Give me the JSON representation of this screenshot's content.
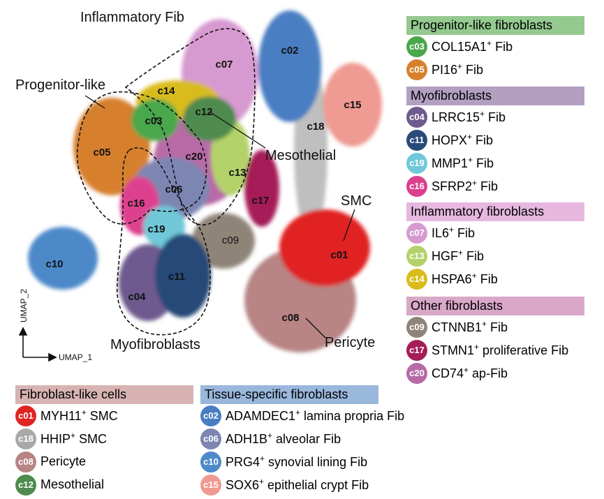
{
  "figure": {
    "axis_x_label": "UMAP_1",
    "axis_y_label": "UMAP_2",
    "annotations": {
      "inflammatory": "Inflammatory Fib",
      "progenitor": "Progenitor-like",
      "myofibroblasts": "Myofibroblasts",
      "mesothelial": "Mesothelial",
      "smc": "SMC",
      "pericyte": "Pericyte"
    }
  },
  "chart_data": {
    "type": "scatter",
    "xlabel": "UMAP_1",
    "ylabel": "UMAP_2",
    "clusters": [
      {
        "id": "c01",
        "color": "#e02424"
      },
      {
        "id": "c02",
        "color": "#4a7ec2"
      },
      {
        "id": "c03",
        "color": "#4aa84c"
      },
      {
        "id": "c04",
        "color": "#6e5a8e"
      },
      {
        "id": "c05",
        "color": "#d6802e"
      },
      {
        "id": "c06",
        "color": "#7d86b2"
      },
      {
        "id": "c07",
        "color": "#d79ad0"
      },
      {
        "id": "c08",
        "color": "#b88484"
      },
      {
        "id": "c09",
        "color": "#8f8478"
      },
      {
        "id": "c10",
        "color": "#4e89c9"
      },
      {
        "id": "c11",
        "color": "#284a78"
      },
      {
        "id": "c12",
        "color": "#4f8b4f"
      },
      {
        "id": "c13",
        "color": "#b4d26a"
      },
      {
        "id": "c14",
        "color": "#d9bc1a"
      },
      {
        "id": "c15",
        "color": "#ef9a92"
      },
      {
        "id": "c16",
        "color": "#dd3f8f"
      },
      {
        "id": "c17",
        "color": "#a51d58"
      },
      {
        "id": "c18",
        "color": "#a9a9a9"
      },
      {
        "id": "c19",
        "color": "#6fc8d9"
      },
      {
        "id": "c20",
        "color": "#b86aa6"
      }
    ]
  },
  "legend": {
    "groups": [
      {
        "title": "Progenitor-like fibroblasts",
        "color": "#94c98f",
        "items": [
          {
            "badge": "c03",
            "gene": "COL15A1",
            "sup": "+",
            "rest": " Fib",
            "color": "#4aa84c"
          },
          {
            "badge": "c05",
            "gene": "PI16",
            "sup": "+",
            "rest": " Fib",
            "color": "#d6802e"
          }
        ]
      },
      {
        "title": "Myofibroblasts",
        "color": "#b3a0c1",
        "items": [
          {
            "badge": "c04",
            "gene": "LRRC15",
            "sup": "+",
            "rest": " Fib",
            "color": "#6e5a8e"
          },
          {
            "badge": "c11",
            "gene": "HOPX",
            "sup": "+",
            "rest": " Fib",
            "color": "#284a78"
          },
          {
            "badge": "c19",
            "gene": "MMP1",
            "sup": "+",
            "rest": " Fib",
            "color": "#6fc8d9"
          },
          {
            "badge": "c16",
            "gene": "SFRP2",
            "sup": "+",
            "rest": " Fib",
            "color": "#dd3f8f"
          }
        ]
      },
      {
        "title": "Inflammatory fibroblasts",
        "color": "#e6b8e0",
        "items": [
          {
            "badge": "c07",
            "gene": "IL6",
            "sup": "+",
            "rest": " Fib",
            "color": "#d79ad0"
          },
          {
            "badge": "c13",
            "gene": "HGF",
            "sup": "+",
            "rest": " Fib",
            "color": "#b4d26a"
          },
          {
            "badge": "c14",
            "gene": "HSPA6",
            "sup": "+",
            "rest": " Fib",
            "color": "#d9bc1a"
          }
        ]
      },
      {
        "title": "Other fibroblasts",
        "color": "#d9a8c8",
        "items": [
          {
            "badge": "c09",
            "gene": "CTNNB1",
            "sup": "+",
            "rest": " Fib",
            "color": "#8f8478"
          },
          {
            "badge": "c17",
            "gene": "STMN1",
            "sup": "+",
            "rest": " proliferative Fib",
            "color": "#a51d58"
          },
          {
            "badge": "c20",
            "gene": "CD74",
            "sup": "+",
            "rest": " ap-Fib",
            "color": "#b86aa6"
          }
        ]
      },
      {
        "title": "Fibroblast-like cells",
        "color": "#d8b3b3",
        "items": [
          {
            "badge": "c01",
            "gene": "MYH11",
            "sup": "+",
            "rest": " SMC",
            "color": "#e02424"
          },
          {
            "badge": "c18",
            "gene": "HHIP",
            "sup": "+",
            "rest": " SMC",
            "color": "#a9a9a9"
          },
          {
            "badge": "c08",
            "gene": "Pericyte",
            "sup": "",
            "rest": "",
            "color": "#b88484"
          },
          {
            "badge": "c12",
            "gene": "Mesothelial",
            "sup": "",
            "rest": "",
            "color": "#4f8b4f"
          }
        ]
      },
      {
        "title": "Tissue-specific fibroblasts",
        "color": "#9ab7dc",
        "items": [
          {
            "badge": "c02",
            "gene": "ADAMDEC1",
            "sup": "+",
            "rest": " lamina propria Fib",
            "color": "#4a7ec2"
          },
          {
            "badge": "c06",
            "gene": "ADH1B",
            "sup": "+",
            "rest": " alveolar Fib",
            "color": "#7d86b2"
          },
          {
            "badge": "c10",
            "gene": "PRG4",
            "sup": "+",
            "rest": " synovial lining Fib",
            "color": "#4e89c9"
          },
          {
            "badge": "c15",
            "gene": "SOX6",
            "sup": "+",
            "rest": " epithelial crypt Fib",
            "color": "#ef9a92"
          }
        ]
      }
    ]
  }
}
